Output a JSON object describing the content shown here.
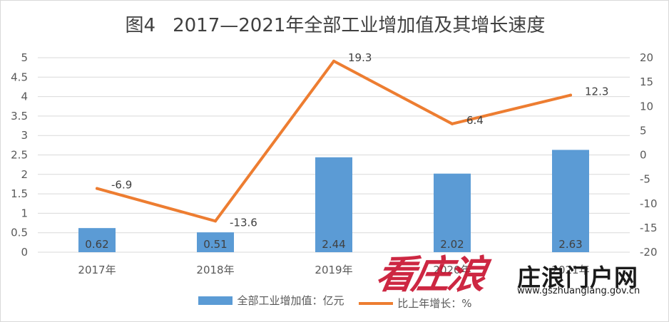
{
  "title": {
    "figure": "图4",
    "text": "2017—2021年全部工业增加值及其增长速度"
  },
  "colors": {
    "bar": "#5b9bd5",
    "line": "#ed7d31",
    "axis_text": "#595959",
    "grid": "#d9d9d9"
  },
  "chart_data": {
    "type": "bar",
    "categories": [
      "2017年",
      "2018年",
      "2019年",
      "2020年",
      "2021年"
    ],
    "series": [
      {
        "name": "全部工业增加值：亿元",
        "type": "bar",
        "axis": "left",
        "values": [
          0.62,
          0.51,
          2.44,
          2.02,
          2.63
        ],
        "labels": [
          "0.62",
          "0.51",
          "2.44",
          "2.02",
          "2.63"
        ]
      },
      {
        "name": "比上年增长：%",
        "type": "line",
        "axis": "right",
        "values": [
          -6.9,
          -13.6,
          19.3,
          6.4,
          12.3
        ],
        "labels": [
          "-6.9",
          "-13.6",
          "19.3",
          "6.4",
          "12.3"
        ]
      }
    ],
    "y_left": {
      "min": 0,
      "max": 5,
      "ticks": [
        "0",
        "0.5",
        "1",
        "1.5",
        "2",
        "2.5",
        "3",
        "3.5",
        "4",
        "4.5",
        "5"
      ]
    },
    "y_right": {
      "min": -20,
      "max": 20,
      "ticks": [
        "-20",
        "-15",
        "-10",
        "-5",
        "0",
        "5",
        "10",
        "15",
        "20"
      ]
    },
    "grid": true,
    "legend": "bottom"
  },
  "watermark": {
    "logo": "看庄浪",
    "name": "庄浪门户网",
    "url": "www.gszhuanglang.gov.cn"
  }
}
